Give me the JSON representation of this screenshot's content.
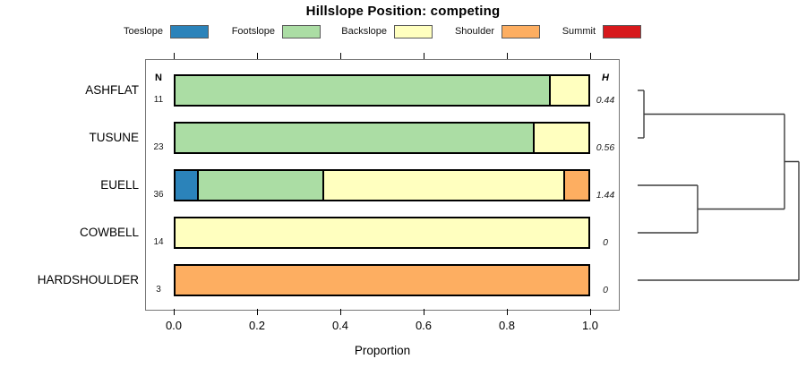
{
  "title": "Hillslope Position: competing",
  "legend": {
    "items": [
      {
        "label": "Toeslope",
        "color": "#2B83BA"
      },
      {
        "label": "Footslope",
        "color": "#ABDDA4"
      },
      {
        "label": "Backslope",
        "color": "#FFFFBF"
      },
      {
        "label": "Shoulder",
        "color": "#FDAE61"
      },
      {
        "label": "Summit",
        "color": "#D7191C"
      }
    ]
  },
  "columns": {
    "n_header": "N",
    "h_header": "H"
  },
  "axis": {
    "label": "Proportion",
    "tick_labels": [
      "0.0",
      "0.2",
      "0.4",
      "0.6",
      "0.8",
      "1.0"
    ]
  },
  "chart_data": {
    "type": "bar",
    "orientation": "horizontal",
    "stacked": true,
    "title": "Hillslope Position: competing",
    "xlabel": "Proportion",
    "xlim": [
      0,
      1
    ],
    "xticks": [
      0,
      0.2,
      0.4,
      0.6,
      0.8,
      1.0
    ],
    "grid": false,
    "legend_position": "top",
    "categories": [
      "Toeslope",
      "Footslope",
      "Backslope",
      "Shoulder",
      "Summit"
    ],
    "colors": {
      "Toeslope": "#2B83BA",
      "Footslope": "#ABDDA4",
      "Backslope": "#FFFFBF",
      "Shoulder": "#FDAE61",
      "Summit": "#D7191C"
    },
    "rows": [
      {
        "label": "ASHFLAT",
        "n": "11",
        "h": "0.44",
        "segments": [
          {
            "category": "Footslope",
            "value": 0.909
          },
          {
            "category": "Backslope",
            "value": 0.091
          }
        ]
      },
      {
        "label": "TUSUNE",
        "n": "23",
        "h": "0.56",
        "segments": [
          {
            "category": "Footslope",
            "value": 0.87
          },
          {
            "category": "Backslope",
            "value": 0.13
          }
        ]
      },
      {
        "label": "EUELL",
        "n": "36",
        "h": "1.44",
        "segments": [
          {
            "category": "Toeslope",
            "value": 0.056
          },
          {
            "category": "Footslope",
            "value": 0.305
          },
          {
            "category": "Backslope",
            "value": 0.583
          },
          {
            "category": "Shoulder",
            "value": 0.056
          }
        ]
      },
      {
        "label": "COWBELL",
        "n": "14",
        "h": "0",
        "segments": [
          {
            "category": "Backslope",
            "value": 1.0
          }
        ]
      },
      {
        "label": "HARDSHOULDER",
        "n": "3",
        "h": "0",
        "segments": [
          {
            "category": "Shoulder",
            "value": 1.0
          }
        ]
      }
    ]
  },
  "dendrogram": {
    "leaf_order": [
      "ASHFLAT",
      "TUSUNE",
      "EUELL",
      "COWBELL",
      "HARDSHOULDER"
    ],
    "merges": [
      {
        "id": "m1",
        "children": [
          "ASHFLAT",
          "TUSUNE"
        ],
        "height": 0.039
      },
      {
        "id": "m2",
        "children": [
          "EUELL",
          "COWBELL"
        ],
        "height": 0.372
      },
      {
        "id": "m3",
        "children": [
          "m1",
          "m2"
        ],
        "height": 0.911
      },
      {
        "id": "m4",
        "children": [
          "m3",
          "HARDSHOULDER"
        ],
        "height": 1.0
      }
    ]
  }
}
